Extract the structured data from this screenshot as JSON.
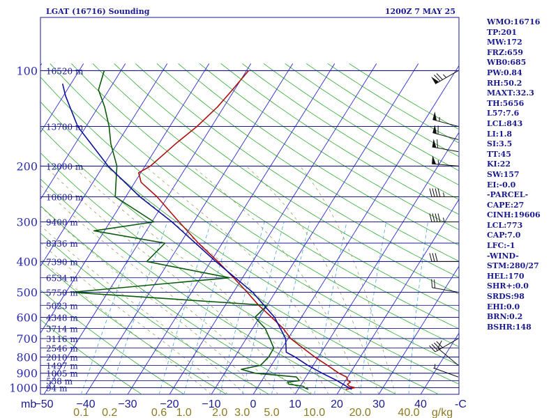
{
  "header": {
    "station": "LGAT (16716) Sounding",
    "time": "1200Z  7 MAY 25"
  },
  "indices": [
    "WMO:16716",
    "TP:201",
    "MW:172",
    "FRZ:659",
    "WB0:685",
    "PW:0.84",
    "RH:50.2",
    "MAXT:32.3",
    "TH:5656",
    "L57:7.6",
    "LCL:843",
    "LI:1.8",
    "SI:3.5",
    "TT:45",
    "KI:22",
    "SW:157",
    "EI:-0.0",
    "-PARCEL-",
    "CAPE:27",
    "CINH:19606",
    "LCL:773",
    "CAP:7.0",
    "LFC:-1",
    "-WIND-",
    "STM:280/27",
    "HEL:170",
    "SHR+:0.0",
    "SRDS:98",
    "EHI:0.0",
    "BRN:0.2",
    "BSHR:148"
  ],
  "colors": {
    "frame": "#1a1a90",
    "isobar": "#1a1a90",
    "isotherm": "#2b2bd0",
    "dry_adiabat": "#2eaa2e",
    "moist_adiabat": "#9aa060",
    "mixing_ratio": "#4aa8d8",
    "temperature": "#b01010",
    "dewpoint": "#0a5a0a",
    "parcel": "#1010a0",
    "wind": "#111111"
  },
  "chart_data": {
    "type": "line",
    "chart_kind": "skew-T log-P sounding",
    "pressure_axis": {
      "unit_label": "mb",
      "ticks": [
        100,
        200,
        300,
        400,
        500,
        600,
        700,
        800,
        900,
        1000
      ],
      "range": [
        100,
        1050
      ],
      "scale": "log"
    },
    "temperature_axis": {
      "ticks": [
        -50,
        -40,
        -30,
        -20,
        -10,
        0,
        10,
        20,
        30,
        40
      ],
      "unit_label": "C",
      "unit_label_prefix": "-"
    },
    "mixing_ratio_axis": {
      "labels": [
        "0.1",
        "0.2",
        "0.6",
        "1.0",
        "2.0",
        "3.0",
        "5.0",
        "10.0",
        "20.0",
        "40.0"
      ],
      "values": [
        0.1,
        0.2,
        0.6,
        1,
        2,
        3,
        5,
        10,
        20,
        40
      ],
      "unit_label": "g/kg"
    },
    "height_labels": [
      {
        "p": 100,
        "label": "16520 m"
      },
      {
        "p": 150,
        "label": "13700 m"
      },
      {
        "p": 200,
        "label": "12000 m"
      },
      {
        "p": 250,
        "label": "10600 m"
      },
      {
        "p": 300,
        "label": "9400 m"
      },
      {
        "p": 350,
        "label": "8336 m"
      },
      {
        "p": 400,
        "label": "7390 m"
      },
      {
        "p": 450,
        "label": "6534 m"
      },
      {
        "p": 500,
        "label": "5750 m"
      },
      {
        "p": 550,
        "label": "5023 m"
      },
      {
        "p": 600,
        "label": "4348 m"
      },
      {
        "p": 650,
        "label": "3714 m"
      },
      {
        "p": 700,
        "label": "3116 m"
      },
      {
        "p": 750,
        "label": "2546 m"
      },
      {
        "p": 800,
        "label": "2010 m"
      },
      {
        "p": 850,
        "label": "1497 m"
      },
      {
        "p": 900,
        "label": "1005 m"
      },
      {
        "p": 950,
        "label": "538 m"
      },
      {
        "p": 1000,
        "label": "94 m"
      }
    ],
    "series": [
      {
        "key": "temperature",
        "points": [
          [
            1012,
            21.4
          ],
          [
            1000,
            23.3
          ],
          [
            990,
            21.8
          ],
          [
            975,
            21.0
          ],
          [
            960,
            21.4
          ],
          [
            950,
            20.6
          ],
          [
            925,
            19.7
          ],
          [
            900,
            17.3
          ],
          [
            850,
            13.4
          ],
          [
            800,
            9.1
          ],
          [
            750,
            5.0
          ],
          [
            700,
            0.6
          ],
          [
            650,
            -2.7
          ],
          [
            600,
            -7.1
          ],
          [
            550,
            -12.0
          ],
          [
            500,
            -16.7
          ],
          [
            450,
            -22.1
          ],
          [
            400,
            -28.3
          ],
          [
            350,
            -35.7
          ],
          [
            300,
            -43.5
          ],
          [
            250,
            -52.5
          ],
          [
            225,
            -58.5
          ],
          [
            210,
            -60.5
          ],
          [
            200,
            -58.7
          ],
          [
            170,
            -56.0
          ],
          [
            150,
            -53.5
          ],
          [
            130,
            -51.5
          ],
          [
            115,
            -50.5
          ],
          [
            100,
            -49.5
          ]
        ]
      },
      {
        "key": "dewpoint",
        "points": [
          [
            1012,
            12.4
          ],
          [
            1000,
            11.3
          ],
          [
            990,
            10.8
          ],
          [
            975,
            7.0
          ],
          [
            960,
            6.4
          ],
          [
            950,
            9.0
          ],
          [
            925,
            7.7
          ],
          [
            900,
            -2.7
          ],
          [
            875,
            -6.6
          ],
          [
            850,
            -2.6
          ],
          [
            800,
            -1.9
          ],
          [
            750,
            -2.0
          ],
          [
            700,
            -4.4
          ],
          [
            650,
            -7.0
          ],
          [
            600,
            -11.1
          ],
          [
            550,
            -10.0
          ],
          [
            500,
            -58.7
          ],
          [
            450,
            -23.1
          ],
          [
            400,
            -45.3
          ],
          [
            350,
            -43.7
          ],
          [
            320,
            -62.5
          ],
          [
            300,
            -49.5
          ],
          [
            250,
            -62.5
          ],
          [
            225,
            -64.5
          ],
          [
            200,
            -66.7
          ],
          [
            170,
            -71.5
          ],
          [
            150,
            -74.5
          ],
          [
            130,
            -78.5
          ],
          [
            115,
            -82.5
          ],
          [
            100,
            -84.0
          ]
        ]
      },
      {
        "key": "parcel",
        "points": [
          [
            1012,
            22.8
          ],
          [
            950,
            18.0
          ],
          [
            900,
            13.3
          ],
          [
            850,
            8.7
          ],
          [
            800,
            4.4
          ],
          [
            773,
            1.6
          ],
          [
            700,
            -0.6
          ],
          [
            600,
            -6.4
          ],
          [
            500,
            -15.4
          ],
          [
            400,
            -28.8
          ],
          [
            300,
            -45.2
          ],
          [
            250,
            -56.6
          ],
          [
            200,
            -68.8
          ],
          [
            150,
            -82.0
          ],
          [
            120,
            -89.5
          ],
          [
            110,
            -92.0
          ]
        ]
      }
    ],
    "wind_barbs": [
      {
        "p": 100,
        "dir": 240,
        "spd": 75
      },
      {
        "p": 150,
        "dir": 285,
        "spd": 55
      },
      {
        "p": 165,
        "dir": 285,
        "spd": 60
      },
      {
        "p": 180,
        "dir": 280,
        "spd": 60
      },
      {
        "p": 200,
        "dir": 275,
        "spd": 55
      },
      {
        "p": 250,
        "dir": 270,
        "spd": 45
      },
      {
        "p": 300,
        "dir": 270,
        "spd": 45
      },
      {
        "p": 400,
        "dir": 270,
        "spd": 30
      },
      {
        "p": 500,
        "dir": 280,
        "spd": 20
      },
      {
        "p": 700,
        "dir": 240,
        "spd": 40
      },
      {
        "p": 850,
        "dir": 310,
        "spd": 10
      },
      {
        "p": 925,
        "dir": 290,
        "spd": 5
      }
    ]
  }
}
